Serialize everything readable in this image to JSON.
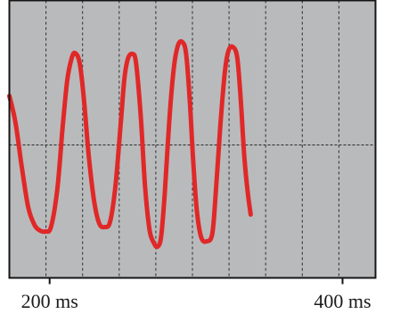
{
  "chart_data": {
    "type": "line",
    "title": "",
    "xlabel": "",
    "ylabel": "",
    "x_range_ms": [
      172.5,
      422.5
    ],
    "y_range": [
      -1,
      1
    ],
    "grid": true,
    "colors": {
      "screen": "#b9babc",
      "frame": "#151515",
      "grid_minor": "#2b2b2b",
      "center_axis": "#2b2b2b",
      "trace": "#e02828"
    },
    "x_ticks": [
      {
        "value": 200,
        "label": "200 ms"
      },
      {
        "value": 400,
        "label": "400 ms"
      }
    ],
    "series": [
      {
        "points": [
          {
            "x": 172.5,
            "y": 0.55
          },
          {
            "x": 176.7,
            "y": 0.25
          },
          {
            "x": 181.0,
            "y": -0.25
          },
          {
            "x": 185.4,
            "y": -0.7
          },
          {
            "x": 189.8,
            "y": -0.9
          },
          {
            "x": 193.5,
            "y": -0.96
          },
          {
            "x": 197.2,
            "y": -0.97
          },
          {
            "x": 200.9,
            "y": -0.92
          },
          {
            "x": 205.2,
            "y": -0.5
          },
          {
            "x": 208.9,
            "y": 0.2
          },
          {
            "x": 212.0,
            "y": 0.72
          },
          {
            "x": 215.0,
            "y": 0.97
          },
          {
            "x": 217.4,
            "y": 1.03
          },
          {
            "x": 220.5,
            "y": 0.92
          },
          {
            "x": 223.5,
            "y": 0.5
          },
          {
            "x": 226.6,
            "y": -0.1
          },
          {
            "x": 230.3,
            "y": -0.62
          },
          {
            "x": 233.9,
            "y": -0.88
          },
          {
            "x": 237.6,
            "y": -0.92
          },
          {
            "x": 241.3,
            "y": -0.86
          },
          {
            "x": 245.0,
            "y": -0.45
          },
          {
            "x": 248.6,
            "y": 0.25
          },
          {
            "x": 251.1,
            "y": 0.75
          },
          {
            "x": 253.5,
            "y": 0.97
          },
          {
            "x": 256.6,
            "y": 1.02
          },
          {
            "x": 259.0,
            "y": 0.92
          },
          {
            "x": 262.1,
            "y": 0.35
          },
          {
            "x": 265.1,
            "y": -0.45
          },
          {
            "x": 268.2,
            "y": -0.95
          },
          {
            "x": 271.2,
            "y": -1.1
          },
          {
            "x": 273.7,
            "y": -1.14
          },
          {
            "x": 276.1,
            "y": -1.03
          },
          {
            "x": 278.6,
            "y": -0.55
          },
          {
            "x": 281.6,
            "y": 0.25
          },
          {
            "x": 284.7,
            "y": 0.85
          },
          {
            "x": 287.7,
            "y": 1.12
          },
          {
            "x": 290.8,
            "y": 1.15
          },
          {
            "x": 293.2,
            "y": 1.02
          },
          {
            "x": 295.7,
            "y": 0.5
          },
          {
            "x": 298.1,
            "y": -0.2
          },
          {
            "x": 300.6,
            "y": -0.75
          },
          {
            "x": 303.6,
            "y": -1.04
          },
          {
            "x": 307.3,
            "y": -1.08
          },
          {
            "x": 311.0,
            "y": -1.0
          },
          {
            "x": 313.4,
            "y": -0.55
          },
          {
            "x": 316.5,
            "y": 0.2
          },
          {
            "x": 319.5,
            "y": 0.8
          },
          {
            "x": 322.0,
            "y": 1.05
          },
          {
            "x": 325.0,
            "y": 1.1
          },
          {
            "x": 328.1,
            "y": 0.98
          },
          {
            "x": 330.5,
            "y": 0.5
          },
          {
            "x": 333.0,
            "y": -0.15
          },
          {
            "x": 335.4,
            "y": -0.55
          },
          {
            "x": 337.3,
            "y": -0.78
          }
        ]
      }
    ]
  }
}
